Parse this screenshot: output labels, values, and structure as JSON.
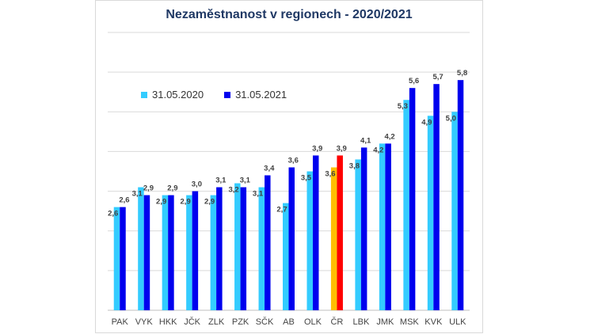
{
  "chart_data": {
    "type": "bar",
    "title": "Nezaměstnanost v regionech - 2020/2021",
    "xlabel": "",
    "ylabel": "",
    "ylim": [
      0,
      7
    ],
    "grid": true,
    "legend_position": "top-left",
    "categories": [
      "PAK",
      "VYK",
      "HKK",
      "JČK",
      "ZLK",
      "PZK",
      "SČK",
      "AB",
      "OLK",
      "ČR",
      "LBK",
      "JMK",
      "MSK",
      "KVK",
      "ULK"
    ],
    "series": [
      {
        "name": "31.05.2020",
        "color": "#33ccff",
        "values": [
          2.6,
          3.1,
          2.9,
          2.9,
          2.9,
          3.2,
          3.1,
          2.7,
          3.5,
          3.6,
          3.8,
          4.2,
          5.3,
          4.9,
          5.0
        ],
        "labels": [
          "2,6",
          "3,1",
          "2,9",
          "2,9",
          "2,9",
          "3,2",
          "3,1",
          "2,7",
          "3,5",
          "3,6",
          "3,8",
          "4,2",
          "5,3",
          "4,9",
          "5,0"
        ]
      },
      {
        "name": "31.05.2021",
        "color": "#0000ee",
        "values": [
          2.6,
          2.9,
          2.9,
          3.0,
          3.1,
          3.1,
          3.4,
          3.6,
          3.9,
          3.9,
          4.1,
          4.2,
          5.6,
          5.7,
          5.8
        ],
        "labels": [
          "2,6",
          "2,9",
          "2,9",
          "3,0",
          "3,1",
          "3,1",
          "3,4",
          "3,6",
          "3,9",
          "3,9",
          "4,1",
          "4,2",
          "5,6",
          "5,7",
          "5,8"
        ]
      }
    ],
    "highlight": {
      "category": "ČR",
      "colors": [
        "#ffc000",
        "#ff0000"
      ]
    }
  }
}
